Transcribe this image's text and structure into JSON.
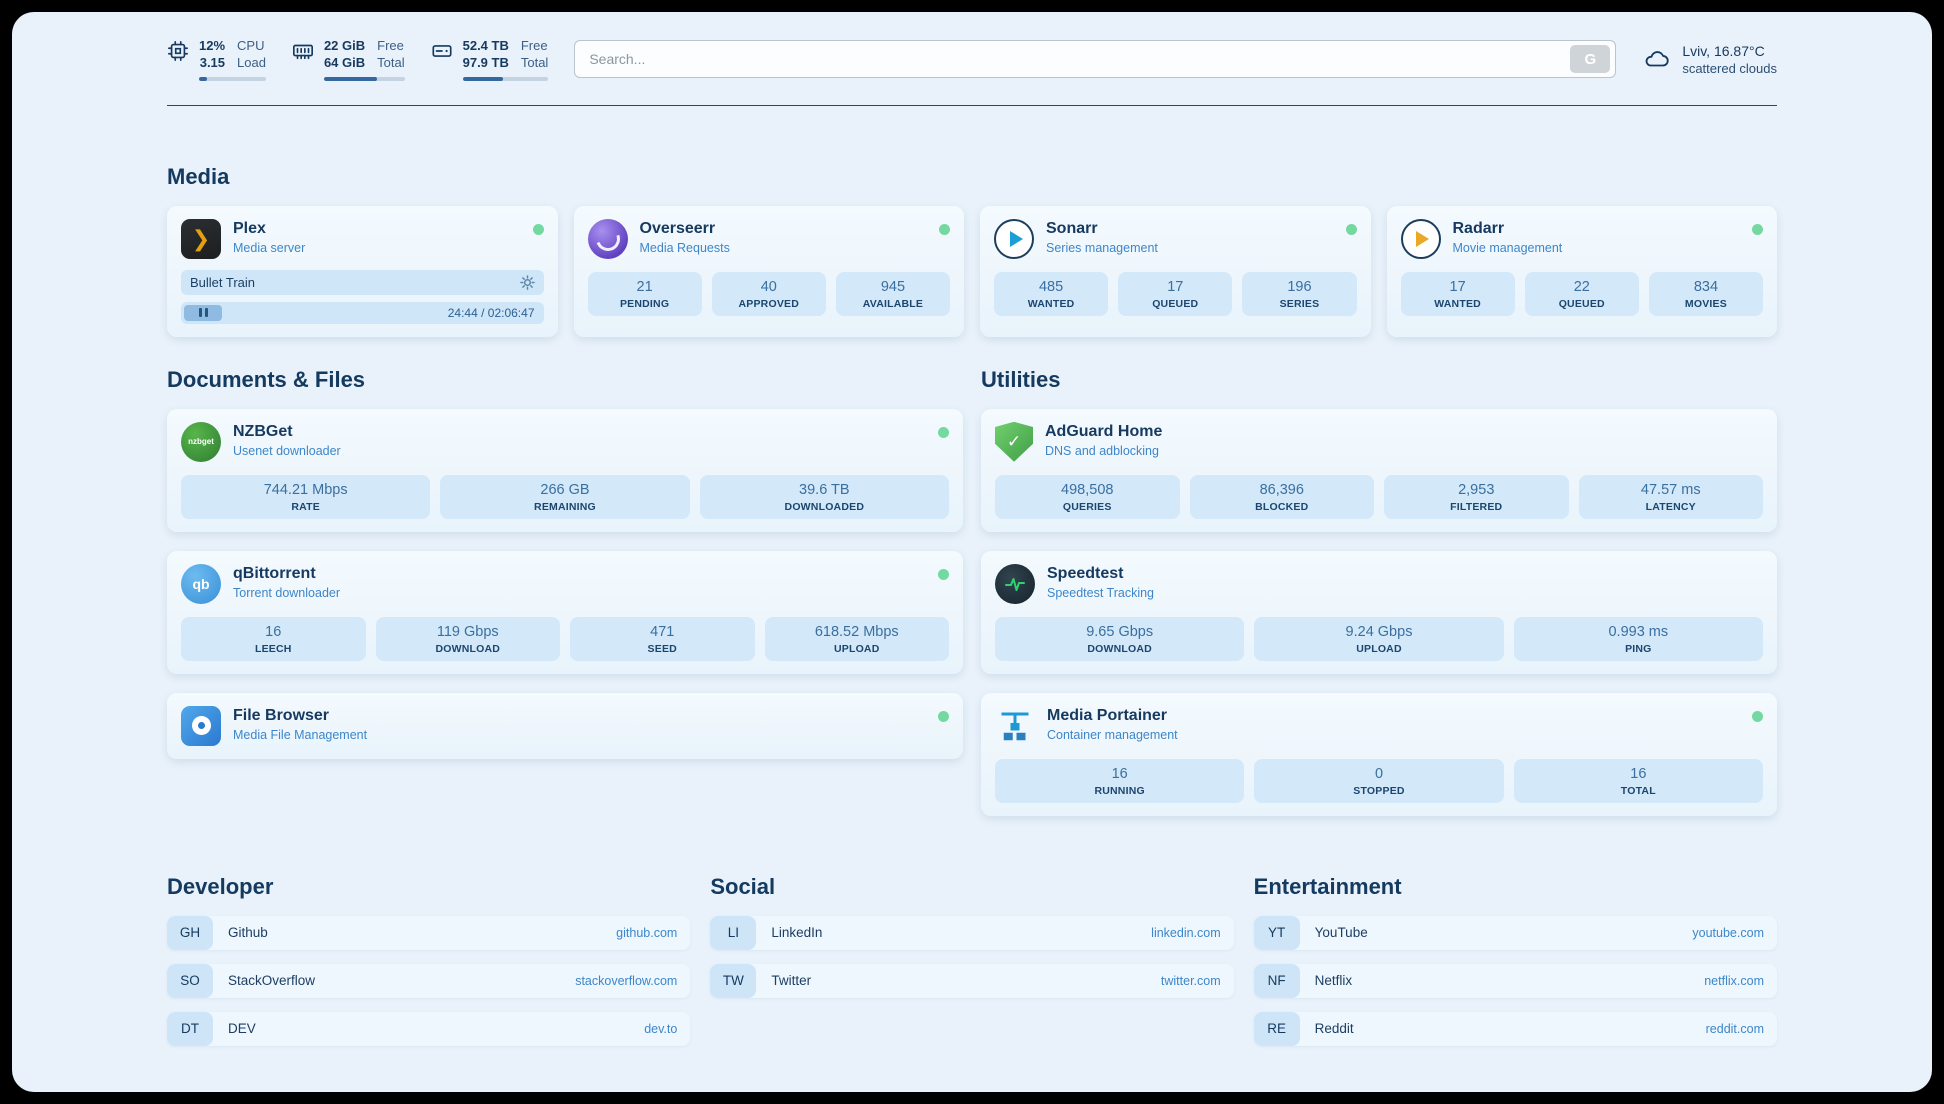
{
  "header": {
    "cpu": {
      "rows": [
        {
          "value": "12%",
          "label": "CPU"
        },
        {
          "value": "3.15",
          "label": "Load"
        }
      ],
      "progress": 12
    },
    "ram": {
      "rows": [
        {
          "value": "22 GiB",
          "label": "Free"
        },
        {
          "value": "64 GiB",
          "label": "Total"
        }
      ],
      "progress": 66
    },
    "disk": {
      "rows": [
        {
          "value": "52.4 TB",
          "label": "Free"
        },
        {
          "value": "97.9 TB",
          "label": "Total"
        }
      ],
      "progress": 47
    },
    "search": {
      "placeholder": "Search...",
      "button_label": "G"
    },
    "weather": {
      "location": "Lviv, 16.87°C",
      "condition": "scattered clouds"
    }
  },
  "sections": {
    "media": "Media",
    "documents": "Documents & Files",
    "utilities": "Utilities",
    "developer": "Developer",
    "social": "Social",
    "entertainment": "Entertainment"
  },
  "apps": {
    "plex": {
      "name": "Plex",
      "subtitle": "Media server",
      "now_playing": "Bullet Train",
      "time": "24:44 / 02:06:47",
      "icon_glyph": "❯"
    },
    "overseerr": {
      "name": "Overseerr",
      "subtitle": "Media Requests",
      "stats": [
        {
          "value": "21",
          "label": "PENDING"
        },
        {
          "value": "40",
          "label": "APPROVED"
        },
        {
          "value": "945",
          "label": "AVAILABLE"
        }
      ]
    },
    "sonarr": {
      "name": "Sonarr",
      "subtitle": "Series management",
      "stats": [
        {
          "value": "485",
          "label": "WANTED"
        },
        {
          "value": "17",
          "label": "QUEUED"
        },
        {
          "value": "196",
          "label": "SERIES"
        }
      ]
    },
    "radarr": {
      "name": "Radarr",
      "subtitle": "Movie management",
      "stats": [
        {
          "value": "17",
          "label": "WANTED"
        },
        {
          "value": "22",
          "label": "QUEUED"
        },
        {
          "value": "834",
          "label": "MOVIES"
        }
      ]
    },
    "nzbget": {
      "name": "NZBGet",
      "subtitle": "Usenet downloader",
      "icon_text": "nzbget",
      "stats": [
        {
          "value": "744.21 Mbps",
          "label": "RATE"
        },
        {
          "value": "266 GB",
          "label": "REMAINING"
        },
        {
          "value": "39.6 TB",
          "label": "DOWNLOADED"
        }
      ]
    },
    "qbittorrent": {
      "name": "qBittorrent",
      "subtitle": "Torrent downloader",
      "icon_text": "qb",
      "stats": [
        {
          "value": "16",
          "label": "LEECH"
        },
        {
          "value": "119 Gbps",
          "label": "DOWNLOAD"
        },
        {
          "value": "471",
          "label": "SEED"
        },
        {
          "value": "618.52 Mbps",
          "label": "UPLOAD"
        }
      ]
    },
    "filebrowser": {
      "name": "File Browser",
      "subtitle": "Media File Management"
    },
    "adguard": {
      "name": "AdGuard Home",
      "subtitle": "DNS and adblocking",
      "icon_glyph": "✓",
      "stats": [
        {
          "value": "498,508",
          "label": "QUERIES"
        },
        {
          "value": "86,396",
          "label": "BLOCKED"
        },
        {
          "value": "2,953",
          "label": "FILTERED"
        },
        {
          "value": "47.57 ms",
          "label": "LATENCY"
        }
      ]
    },
    "speedtest": {
      "name": "Speedtest",
      "subtitle": "Speedtest Tracking",
      "stats": [
        {
          "value": "9.65 Gbps",
          "label": "DOWNLOAD"
        },
        {
          "value": "9.24 Gbps",
          "label": "UPLOAD"
        },
        {
          "value": "0.993 ms",
          "label": "PING"
        }
      ]
    },
    "portainer": {
      "name": "Media Portainer",
      "subtitle": "Container management",
      "stats": [
        {
          "value": "16",
          "label": "RUNNING"
        },
        {
          "value": "0",
          "label": "STOPPED"
        },
        {
          "value": "16",
          "label": "TOTAL"
        }
      ]
    }
  },
  "bookmarks": {
    "developer": [
      {
        "badge": "GH",
        "name": "Github",
        "url": "github.com"
      },
      {
        "badge": "SO",
        "name": "StackOverflow",
        "url": "stackoverflow.com"
      },
      {
        "badge": "DT",
        "name": "DEV",
        "url": "dev.to"
      }
    ],
    "social": [
      {
        "badge": "LI",
        "name": "LinkedIn",
        "url": "linkedin.com"
      },
      {
        "badge": "TW",
        "name": "Twitter",
        "url": "twitter.com"
      }
    ],
    "entertainment": [
      {
        "badge": "YT",
        "name": "YouTube",
        "url": "youtube.com"
      },
      {
        "badge": "NF",
        "name": "Netflix",
        "url": "netflix.com"
      },
      {
        "badge": "RE",
        "name": "Reddit",
        "url": "reddit.com"
      }
    ]
  },
  "colors": {
    "accent_blue": "#3e86c9",
    "status_green": "#74d9a0",
    "stat_box_bg": "#d3e8f8",
    "page_bg": "#e9f2fa"
  }
}
